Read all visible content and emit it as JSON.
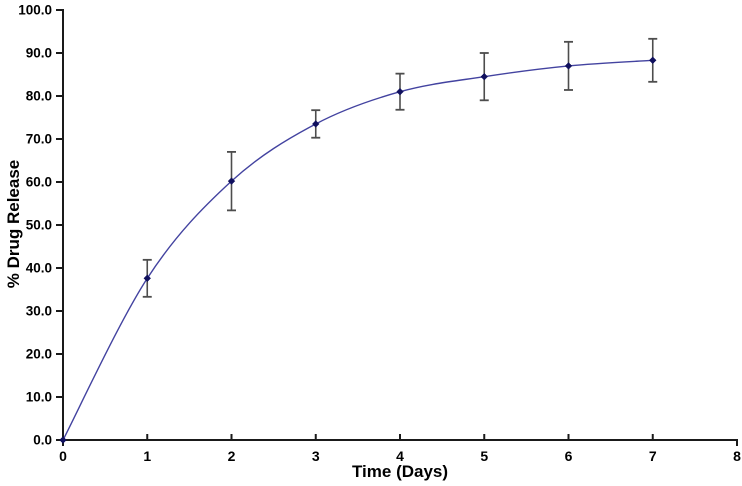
{
  "figure": {
    "background": "#ffffff"
  },
  "chart_data": {
    "type": "line",
    "title": "",
    "xlabel": "Time (Days)",
    "ylabel": "% Drug Release",
    "x": [
      0,
      1,
      2,
      3,
      4,
      5,
      6,
      7
    ],
    "series": [
      {
        "name": "% drug release",
        "values": [
          0.0,
          37.6,
          60.2,
          73.5,
          81.0,
          84.5,
          87.0,
          88.3
        ],
        "errors": [
          0.0,
          4.3,
          6.8,
          3.2,
          4.2,
          5.5,
          5.6,
          5.0
        ]
      }
    ],
    "xlim": [
      0,
      8
    ],
    "ylim": [
      0,
      100
    ],
    "x_tick_labels": [
      "0",
      "1",
      "2",
      "3",
      "4",
      "5",
      "6",
      "7",
      "8"
    ],
    "y_tick_labels": [
      "0.0",
      "10.0",
      "20.0",
      "30.0",
      "40.0",
      "50.0",
      "60.0",
      "70.0",
      "80.0",
      "90.0",
      "100.0"
    ],
    "grid": false,
    "legend": "none",
    "marker_shape": "diamond",
    "line_style": "smooth",
    "colors": {
      "line": "#4343a0",
      "marker": "#10105e",
      "error_bar": "#4d4d4d",
      "axis": "#1a1a1a",
      "tick_text": "#000000"
    }
  }
}
